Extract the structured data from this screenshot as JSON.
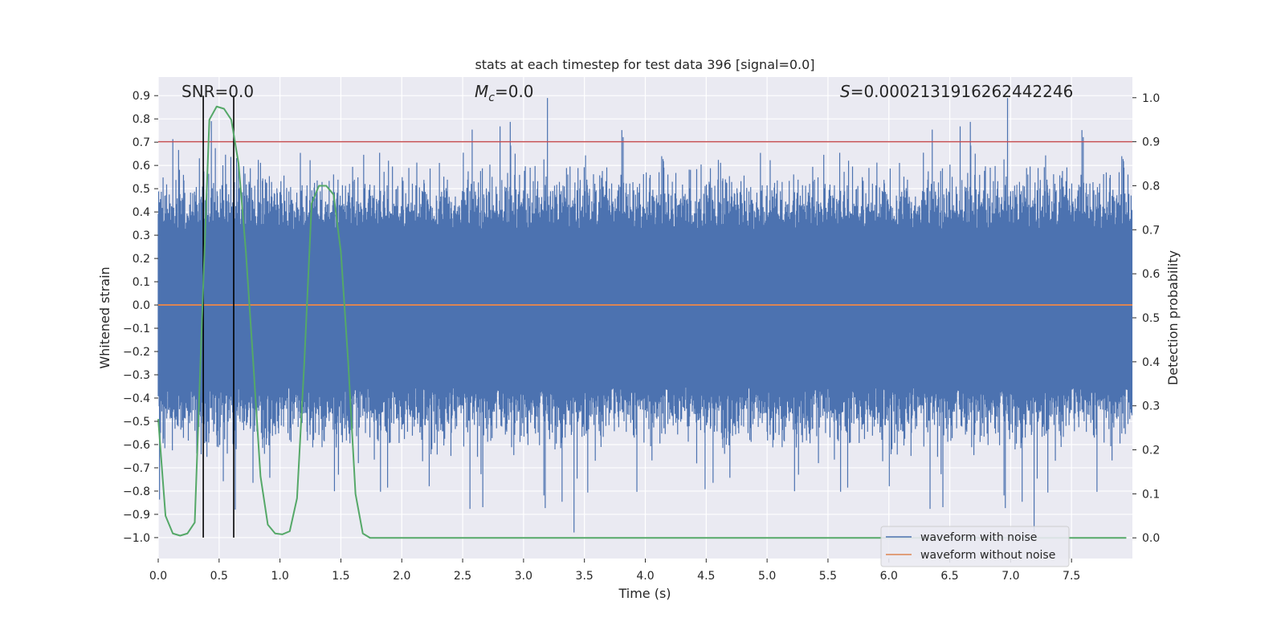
{
  "chart_data": {
    "type": "line",
    "title": "stats at each timestep for test data 396 [signal=0.0]",
    "xlabel": "Time (s)",
    "ylabel": "Whitened strain",
    "y2label": "Detection probability",
    "xlim": [
      0.0,
      8.0
    ],
    "ylim": [
      -1.09,
      0.98
    ],
    "y2lim": [
      -0.047,
      1.047
    ],
    "x_ticks": [
      0.0,
      0.5,
      1.0,
      1.5,
      2.0,
      2.5,
      3.0,
      3.5,
      4.0,
      4.5,
      5.0,
      5.5,
      6.0,
      6.5,
      7.0,
      7.5
    ],
    "x_tick_labels": [
      "0.0",
      "0.5",
      "1.0",
      "1.5",
      "2.0",
      "2.5",
      "3.0",
      "3.5",
      "4.0",
      "4.5",
      "5.0",
      "5.5",
      "6.0",
      "6.5",
      "7.0",
      "7.5"
    ],
    "y_ticks": [
      0.9,
      0.8,
      0.7,
      0.6,
      0.5,
      0.4,
      0.3,
      0.2,
      0.1,
      0.0,
      -0.1,
      -0.2,
      -0.3,
      -0.4,
      -0.5,
      -0.6,
      -0.7,
      -0.8,
      -0.9,
      -1.0
    ],
    "y_tick_labels": [
      "0.9",
      "0.8",
      "0.7",
      "0.6",
      "0.5",
      "0.4",
      "0.3",
      "0.2",
      "0.1",
      "0.0",
      "−0.1",
      "−0.2",
      "−0.3",
      "−0.4",
      "−0.5",
      "−0.6",
      "−0.7",
      "−0.8",
      "−0.9",
      "−1.0"
    ],
    "y2_ticks": [
      1.0,
      0.9,
      0.8,
      0.7,
      0.6,
      0.5,
      0.4,
      0.3,
      0.2,
      0.1,
      0.0
    ],
    "y2_tick_labels": [
      "1.0",
      "0.9",
      "0.8",
      "0.7",
      "0.6",
      "0.5",
      "0.4",
      "0.3",
      "0.2",
      "0.1",
      "0.0"
    ],
    "grid": true,
    "annotations": {
      "snr": "SNR=0.0",
      "mc_symbol": "M",
      "mc_sub": "c",
      "mc_value": "=0.0",
      "s_symbol": "S",
      "s_value": "=0.0002131916262442246"
    },
    "legend": {
      "placement": "lower-right",
      "entries": [
        "waveform with noise",
        "waveform without noise"
      ]
    },
    "series": [
      {
        "name": "waveform with noise",
        "axis": "left",
        "color": "#4c72b0",
        "kind": "noise",
        "typical_range": [
          -0.35,
          0.32
        ],
        "peak_range": [
          -1.0,
          0.89
        ],
        "x_start": 0.0,
        "x_end": 8.0
      },
      {
        "name": "waveform without noise",
        "axis": "left",
        "color": "#dd8452",
        "x": [
          0.0,
          8.0
        ],
        "values": [
          0.0,
          0.0
        ]
      },
      {
        "name": "",
        "axis": "right",
        "color": "#55a868",
        "x": [
          0.0,
          0.06,
          0.12,
          0.18,
          0.24,
          0.3,
          0.36,
          0.42,
          0.48,
          0.54,
          0.6,
          0.66,
          0.72,
          0.78,
          0.84,
          0.9,
          0.96,
          1.02,
          1.08,
          1.14,
          1.2,
          1.26,
          1.32,
          1.38,
          1.44,
          1.5,
          1.56,
          1.62,
          1.68,
          1.74,
          1.8,
          2.4,
          3.0,
          4.0,
          5.0,
          6.0,
          7.0,
          7.95
        ],
        "values": [
          0.27,
          0.05,
          0.01,
          0.005,
          0.01,
          0.035,
          0.5,
          0.95,
          0.98,
          0.975,
          0.95,
          0.85,
          0.65,
          0.4,
          0.14,
          0.03,
          0.01,
          0.008,
          0.015,
          0.09,
          0.4,
          0.76,
          0.8,
          0.8,
          0.78,
          0.65,
          0.4,
          0.1,
          0.01,
          0.0,
          0.0,
          0.0,
          0.0,
          0.0,
          0.0,
          0.0,
          0.0,
          0.0
        ]
      }
    ],
    "threshold": {
      "axis": "right",
      "value": 0.9,
      "color": "#c44e52"
    },
    "vertical_lines": {
      "x": [
        0.37,
        0.62
      ],
      "y_range": [
        -1.0,
        0.9
      ],
      "color": "#000000"
    }
  }
}
